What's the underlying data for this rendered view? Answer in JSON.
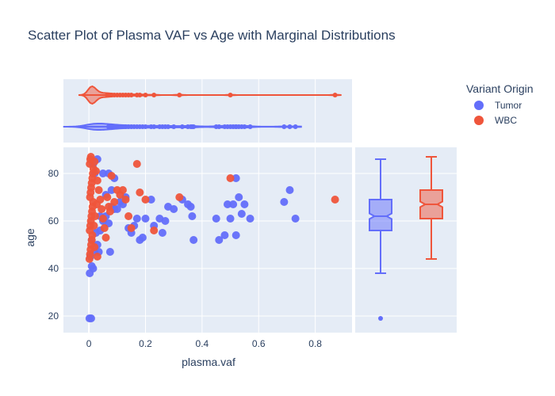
{
  "chart_data": {
    "type": "scatter",
    "title": "Scatter Plot of Plasma VAF vs Age with Marginal Distributions",
    "xlabel": "plasma.vaf",
    "ylabel": "age",
    "xlim": [
      -0.09,
      0.93
    ],
    "ylim": [
      13,
      91
    ],
    "x_ticks": [
      0,
      0.2,
      0.4,
      0.6,
      0.8
    ],
    "x_tick_labels": [
      "0",
      "0.2",
      "0.4",
      "0.6",
      "0.8"
    ],
    "y_ticks": [
      20,
      40,
      60,
      80
    ],
    "y_tick_labels": [
      "20",
      "40",
      "60",
      "80"
    ],
    "grid": true,
    "legend": {
      "title": "Variant Origin",
      "placement": "top-right"
    },
    "marginal_x": "violin",
    "marginal_y": "box",
    "series": [
      {
        "name": "Tumor",
        "color": "#636efa",
        "points": [
          [
            0.002,
            19
          ],
          [
            0.008,
            19
          ],
          [
            0.003,
            38
          ],
          [
            0.01,
            41
          ],
          [
            0.015,
            40
          ],
          [
            0.005,
            45
          ],
          [
            0.02,
            47
          ],
          [
            0.03,
            50
          ],
          [
            0.01,
            52
          ],
          [
            0.025,
            55
          ],
          [
            0.04,
            56
          ],
          [
            0.05,
            60
          ],
          [
            0.06,
            62
          ],
          [
            0.07,
            59
          ],
          [
            0.08,
            66
          ],
          [
            0.09,
            65
          ],
          [
            0.1,
            65
          ],
          [
            0.11,
            68
          ],
          [
            0.12,
            67
          ],
          [
            0.13,
            70
          ],
          [
            0.14,
            57
          ],
          [
            0.15,
            55
          ],
          [
            0.16,
            58
          ],
          [
            0.17,
            61
          ],
          [
            0.18,
            52
          ],
          [
            0.19,
            53
          ],
          [
            0.2,
            61
          ],
          [
            0.22,
            69
          ],
          [
            0.23,
            58
          ],
          [
            0.25,
            61
          ],
          [
            0.26,
            55
          ],
          [
            0.27,
            60
          ],
          [
            0.28,
            66
          ],
          [
            0.3,
            65
          ],
          [
            0.33,
            69
          ],
          [
            0.35,
            67
          ],
          [
            0.36,
            66
          ],
          [
            0.365,
            62
          ],
          [
            0.37,
            52
          ],
          [
            0.45,
            61
          ],
          [
            0.46,
            52
          ],
          [
            0.48,
            54
          ],
          [
            0.49,
            67
          ],
          [
            0.5,
            61
          ],
          [
            0.51,
            67
          ],
          [
            0.52,
            54
          ],
          [
            0.53,
            70
          ],
          [
            0.54,
            63
          ],
          [
            0.55,
            67
          ],
          [
            0.57,
            61
          ],
          [
            0.69,
            68
          ],
          [
            0.71,
            73
          ],
          [
            0.73,
            61
          ],
          [
            0.52,
            78
          ],
          [
            0.02,
            80
          ],
          [
            0.05,
            80
          ],
          [
            0.07,
            80
          ],
          [
            0.09,
            78
          ],
          [
            0.03,
            86
          ],
          [
            0.015,
            84
          ],
          [
            0.06,
            71
          ],
          [
            0.08,
            73
          ],
          [
            0.04,
            62
          ],
          [
            0.035,
            47
          ],
          [
            0.075,
            47
          ]
        ]
      },
      {
        "name": "WBC",
        "color": "#ef553b",
        "points": [
          [
            0.002,
            44
          ],
          [
            0.004,
            46
          ],
          [
            0.006,
            48
          ],
          [
            0.008,
            50
          ],
          [
            0.01,
            52
          ],
          [
            0.012,
            54
          ],
          [
            0.003,
            56
          ],
          [
            0.005,
            58
          ],
          [
            0.007,
            60
          ],
          [
            0.009,
            62
          ],
          [
            0.011,
            64
          ],
          [
            0.013,
            66
          ],
          [
            0.015,
            68
          ],
          [
            0.004,
            70
          ],
          [
            0.006,
            72
          ],
          [
            0.008,
            74
          ],
          [
            0.01,
            76
          ],
          [
            0.012,
            78
          ],
          [
            0.014,
            80
          ],
          [
            0.016,
            82
          ],
          [
            0.003,
            84
          ],
          [
            0.005,
            86
          ],
          [
            0.007,
            87
          ],
          [
            0.02,
            85
          ],
          [
            0.025,
            81
          ],
          [
            0.03,
            77
          ],
          [
            0.035,
            73
          ],
          [
            0.04,
            69
          ],
          [
            0.045,
            65
          ],
          [
            0.05,
            61
          ],
          [
            0.055,
            57
          ],
          [
            0.06,
            53
          ],
          [
            0.065,
            70
          ],
          [
            0.07,
            66
          ],
          [
            0.075,
            64
          ],
          [
            0.08,
            79
          ],
          [
            0.09,
            68
          ],
          [
            0.1,
            73
          ],
          [
            0.11,
            71
          ],
          [
            0.12,
            73
          ],
          [
            0.13,
            69
          ],
          [
            0.14,
            62
          ],
          [
            0.15,
            57
          ],
          [
            0.17,
            84
          ],
          [
            0.18,
            72
          ],
          [
            0.2,
            69
          ],
          [
            0.23,
            56
          ],
          [
            0.32,
            70
          ],
          [
            0.5,
            78
          ],
          [
            0.87,
            69
          ],
          [
            0.02,
            49
          ],
          [
            0.03,
            45
          ],
          [
            0.018,
            58
          ],
          [
            0.022,
            62
          ],
          [
            0.028,
            67
          ]
        ]
      }
    ],
    "box_stats": [
      {
        "name": "Tumor",
        "min": 38,
        "q1": 56,
        "median": 62,
        "q3": 69,
        "max": 86,
        "outliers": [
          19
        ]
      },
      {
        "name": "WBC",
        "min": 44,
        "q1": 61,
        "median": 67,
        "q3": 73,
        "max": 87,
        "outliers": []
      }
    ]
  }
}
